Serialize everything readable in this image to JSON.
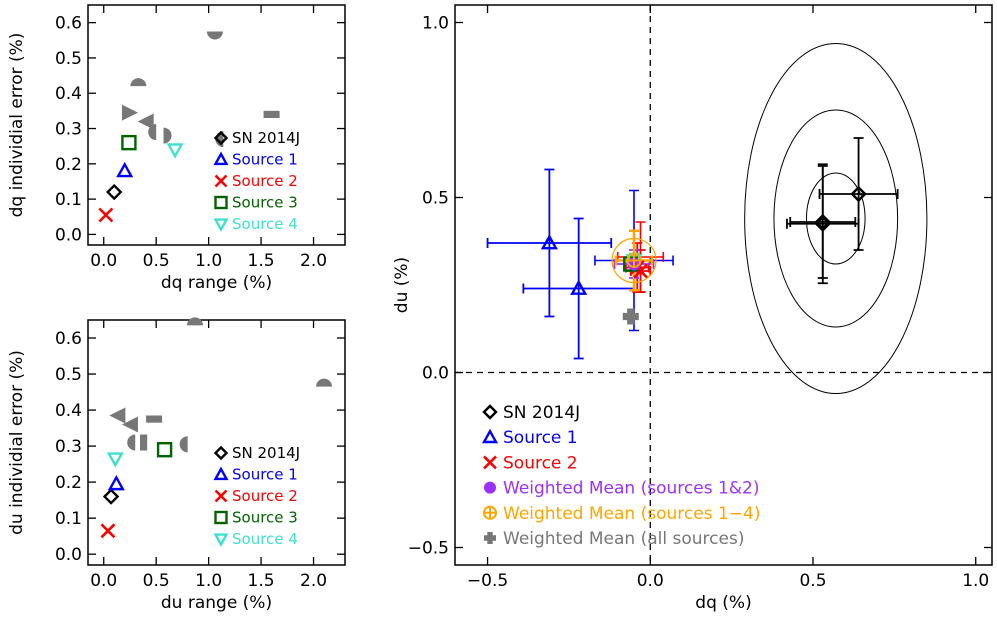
{
  "chart_data": [
    {
      "panel": "top-left",
      "type": "scatter",
      "xlabel": "dq range (%)",
      "ylabel": "dq individial error (%)",
      "xlim": [
        -0.15,
        2.3
      ],
      "ylim": [
        -0.03,
        0.65
      ],
      "xticks": [
        "0.0",
        "0.5",
        "1.0",
        "1.5",
        "2.0"
      ],
      "yticks": [
        "0.0",
        "0.1",
        "0.2",
        "0.3",
        "0.4",
        "0.5",
        "0.6"
      ],
      "legend_position": "right",
      "series": [
        {
          "name": "SN 2014J",
          "marker": "diamond",
          "color": "#000000",
          "points": [
            [
              0.1,
              0.12
            ]
          ]
        },
        {
          "name": "Source 1",
          "marker": "triangle-up",
          "color": "#0000ff",
          "points": [
            [
              0.2,
              0.18
            ]
          ]
        },
        {
          "name": "Source 2",
          "marker": "x",
          "color": "#ff0000",
          "points": [
            [
              0.02,
              0.055
            ]
          ]
        },
        {
          "name": "Source 3",
          "marker": "square",
          "color": "#006400",
          "points": [
            [
              0.24,
              0.26
            ]
          ]
        },
        {
          "name": "Source 4",
          "marker": "triangle-down",
          "color": "#40e0d0",
          "points": [
            [
              0.68,
              0.24
            ]
          ]
        },
        {
          "name": "",
          "marker": "gray-shapes",
          "color": "#777777",
          "points": [
            {
              "x": 0.25,
              "y": 0.345,
              "shape": "tri-right"
            },
            {
              "x": 0.33,
              "y": 0.42,
              "shape": "half-up"
            },
            {
              "x": 0.4,
              "y": 0.32,
              "shape": "tri-left"
            },
            {
              "x": 0.5,
              "y": 0.29,
              "shape": "half-left"
            },
            {
              "x": 0.57,
              "y": 0.28,
              "shape": "half-right"
            },
            {
              "x": 1.06,
              "y": 0.575,
              "shape": "half-down"
            },
            {
              "x": 1.14,
              "y": 0.27,
              "shape": "half-left"
            },
            {
              "x": 1.6,
              "y": 0.34,
              "shape": "bar"
            }
          ]
        }
      ]
    },
    {
      "panel": "bottom-left",
      "type": "scatter",
      "xlabel": "du range (%)",
      "ylabel": "du individial error (%)",
      "xlim": [
        -0.15,
        2.3
      ],
      "ylim": [
        -0.03,
        0.65
      ],
      "xticks": [
        "0.0",
        "0.5",
        "1.0",
        "1.5",
        "2.0"
      ],
      "yticks": [
        "0.0",
        "0.1",
        "0.2",
        "0.3",
        "0.4",
        "0.5",
        "0.6"
      ],
      "legend_position": "right",
      "series": [
        {
          "name": "SN 2014J",
          "marker": "diamond",
          "color": "#000000",
          "points": [
            [
              0.07,
              0.16
            ]
          ]
        },
        {
          "name": "Source 1",
          "marker": "triangle-up",
          "color": "#0000ff",
          "points": [
            [
              0.12,
              0.195
            ]
          ]
        },
        {
          "name": "Source 2",
          "marker": "x",
          "color": "#ff0000",
          "points": [
            [
              0.04,
              0.065
            ]
          ]
        },
        {
          "name": "Source 3",
          "marker": "square",
          "color": "#006400",
          "points": [
            [
              0.58,
              0.29
            ]
          ]
        },
        {
          "name": "Source 4",
          "marker": "triangle-down",
          "color": "#40e0d0",
          "points": [
            [
              0.11,
              0.265
            ]
          ]
        },
        {
          "name": "",
          "marker": "gray-shapes",
          "color": "#777777",
          "points": [
            {
              "x": 0.13,
              "y": 0.385,
              "shape": "tri-left"
            },
            {
              "x": 0.25,
              "y": 0.36,
              "shape": "tri-left"
            },
            {
              "x": 0.3,
              "y": 0.31,
              "shape": "half-left"
            },
            {
              "x": 0.38,
              "y": 0.31,
              "shape": "bar-vert"
            },
            {
              "x": 0.48,
              "y": 0.375,
              "shape": "bar"
            },
            {
              "x": 0.8,
              "y": 0.305,
              "shape": "half-left"
            },
            {
              "x": 0.87,
              "y": 0.635,
              "shape": "half-up"
            },
            {
              "x": 2.1,
              "y": 0.465,
              "shape": "half-up"
            }
          ]
        }
      ]
    },
    {
      "panel": "right",
      "type": "scatter",
      "xlabel": "dq (%)",
      "ylabel": "du (%)",
      "xlim": [
        -0.6,
        1.05
      ],
      "ylim": [
        -0.55,
        1.05
      ],
      "xticks": [
        "-0.5",
        "0.0",
        "0.5",
        "1.0"
      ],
      "yticks": [
        "-0.5",
        "0.0",
        "0.5",
        "1.0"
      ],
      "legend_position": "bottom-left",
      "dashed_lines": {
        "x0": 0.0,
        "y0": 0.0
      },
      "ellipses": {
        "center": [
          0.57,
          0.44
        ],
        "rx": [
          0.09,
          0.19,
          0.28
        ],
        "ry": [
          0.13,
          0.31,
          0.5
        ],
        "color": "#000000"
      },
      "points": [
        {
          "series": "SN 2014J",
          "color": "#000000",
          "marker": "diamond",
          "x": 0.53,
          "y": 0.425,
          "xerr": 0.11,
          "yerr": 0.17
        },
        {
          "series": "SN 2014J",
          "color": "#000000",
          "marker": "diamond",
          "x": 0.53,
          "y": 0.43,
          "xerr": 0.1,
          "yerr": 0.16
        },
        {
          "series": "SN 2014J",
          "color": "#000000",
          "marker": "diamond",
          "x": 0.64,
          "y": 0.51,
          "xerr": 0.12,
          "yerr": 0.16
        },
        {
          "series": "Source 1",
          "color": "#0000ff",
          "marker": "triangle-up",
          "x": -0.31,
          "y": 0.37,
          "xerr": 0.19,
          "yerr": 0.21
        },
        {
          "series": "Source 1",
          "color": "#0000ff",
          "marker": "triangle-up",
          "x": -0.22,
          "y": 0.24,
          "xerr": 0.17,
          "yerr": 0.2
        },
        {
          "series": "Source 2",
          "color": "#ff0000",
          "marker": "x",
          "x": -0.04,
          "y": 0.3,
          "xerr": 0.035,
          "yerr": 0.07
        },
        {
          "series": "Source 2",
          "color": "#ff0000",
          "marker": "x",
          "x": -0.03,
          "y": 0.29,
          "xerr": 0.03,
          "yerr": 0.06
        },
        {
          "series": "Source 3",
          "color": "#006400",
          "marker": "square",
          "x": -0.06,
          "y": 0.31,
          "xerr": 0.02,
          "yerr": 0.02
        },
        {
          "series": "Source 4",
          "color": "#40e0d0",
          "marker": "triangle-down",
          "x": -0.05,
          "y": 0.32,
          "xerr": 0.02,
          "yerr": 0.02
        },
        {
          "series": "Weighted Mean (sources 1&2)",
          "color": "#9b30ff",
          "marker": "circle",
          "x": -0.05,
          "y": 0.31,
          "xerr": 0.06,
          "yerr": 0.04
        },
        {
          "series": "Weighted Mean (sources 1−4)",
          "color": "#ffa500",
          "marker": "circle-plus",
          "x": -0.05,
          "y": 0.32,
          "xerr": 0.055,
          "yerr": 0.085
        },
        {
          "series": "Weighted Mean (all sources)",
          "color": "#777777",
          "marker": "plus",
          "x": -0.06,
          "y": 0.16,
          "xerr": 0.0,
          "yerr": 0.0
        }
      ],
      "extra_errorbars": [
        {
          "color": "#0000ff",
          "x": -0.05,
          "y": 0.32,
          "xerr": 0.12,
          "yerr": 0.2
        },
        {
          "color": "#ff0000",
          "x": -0.03,
          "y": 0.33,
          "xerr": 0.07,
          "yerr": 0.1
        }
      ],
      "legend": [
        {
          "label": "SN 2014J",
          "color": "#000000",
          "marker": "diamond"
        },
        {
          "label": "Source 1",
          "color": "#0000ff",
          "marker": "triangle-up"
        },
        {
          "label": "Source 2",
          "color": "#ff0000",
          "marker": "x"
        },
        {
          "label": "Weighted Mean (sources 1&2)",
          "color": "#9b30ff",
          "marker": "circle"
        },
        {
          "label": "Weighted Mean (sources 1−4)",
          "color": "#ffa500",
          "marker": "circle-plus"
        },
        {
          "label": "Weighted Mean (all sources)",
          "color": "#777777",
          "marker": "plus"
        }
      ]
    }
  ]
}
